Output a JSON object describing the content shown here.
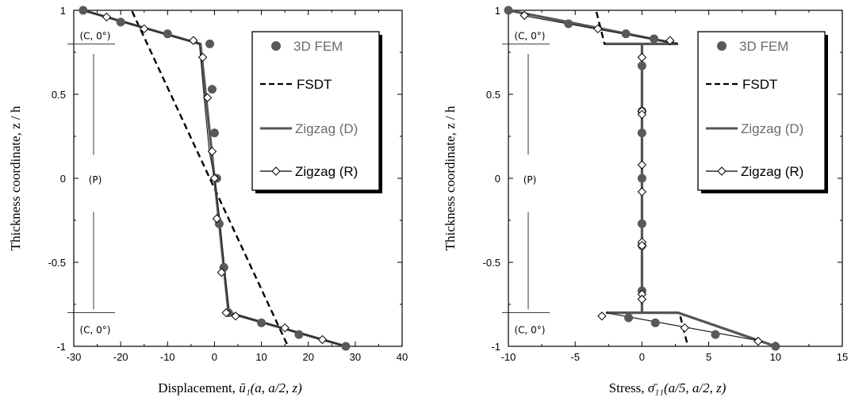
{
  "colors": {
    "fem": "#595959",
    "zigzag_d": "#555555",
    "zigzag_r_line": "#222222",
    "fsdt": "#000000",
    "legend_gray": "#6b6b6b"
  },
  "chart_data": [
    {
      "type": "line",
      "name": "left",
      "xlabel": "Displacement,",
      "xlabel_math": "ū₁(a, a/2, z)",
      "ylabel": "Thickness coordinate, z / h",
      "xlim": [
        -30,
        40
      ],
      "ylim": [
        -1,
        1
      ],
      "xticks": [
        "-30",
        "-20",
        "-10",
        "0",
        "10",
        "20",
        "30",
        "40"
      ],
      "yticks": [
        "1",
        "0.5",
        "0",
        "-0.5",
        "-1"
      ],
      "layers": {
        "top": "(C, 0°)",
        "middle": "(P)",
        "bottom": "(C, 0°)"
      },
      "legend": {
        "fem": "3D FEM",
        "fsdt": "FSDT",
        "zigzag_d": "Zigzag (D)",
        "zigzag_r": "Zigzag (R)"
      },
      "series": [
        {
          "name": "3D FEM",
          "style": "markers-filled",
          "x": [
            -28,
            -20,
            -10,
            -1,
            -0.5,
            0,
            0.5,
            1,
            2,
            3,
            10,
            18,
            28
          ],
          "y": [
            1,
            0.93,
            0.86,
            0.8,
            0.53,
            0.27,
            0,
            -0.27,
            -0.53,
            -0.8,
            -0.86,
            -0.93,
            -1
          ]
        },
        {
          "name": "FSDT",
          "style": "dashed",
          "x": [
            -18.5,
            16.5
          ],
          "y": [
            1.05,
            -1.05
          ]
        },
        {
          "name": "Zigzag (D)",
          "style": "solid",
          "x": [
            -28,
            -3,
            3,
            28
          ],
          "y": [
            1,
            0.8,
            -0.8,
            -1
          ]
        },
        {
          "name": "Zigzag (R)",
          "style": "line-open-diamonds",
          "x": [
            -28,
            -3.2,
            -2.2,
            -1.1,
            0,
            1.1,
            2.2,
            3.2,
            28
          ],
          "y": [
            1,
            0.8,
            0.48,
            0.16,
            0,
            -0.24,
            -0.56,
            -0.8,
            -1
          ],
          "markers_x": [
            -23,
            -15,
            -4.5,
            -2.5,
            -1.5,
            -0.5,
            0,
            0.5,
            1.5,
            2.5,
            4.5,
            15,
            23
          ],
          "markers_y": [
            0.96,
            0.89,
            0.82,
            0.72,
            0.48,
            0.16,
            0,
            -0.24,
            -0.56,
            -0.8,
            -0.82,
            -0.89,
            -0.96
          ]
        }
      ]
    },
    {
      "type": "line",
      "name": "right",
      "xlabel": "Stress,",
      "xlabel_math": "σ̄₁₁(a/5, a/2, z)",
      "ylabel": "Thickness coordinate, z / h",
      "xlim": [
        -10,
        15
      ],
      "ylim": [
        -1,
        1
      ],
      "xticks": [
        "-10",
        "-5",
        "0",
        "5",
        "10",
        "15"
      ],
      "yticks": [
        "1",
        "0.5",
        "0",
        "-0.5",
        "-1"
      ],
      "layers": {
        "top": "(C, 0°)",
        "middle": "(P)",
        "bottom": "(C, 0°)"
      },
      "legend": {
        "fem": "3D FEM",
        "fsdt": "FSDT",
        "zigzag_d": "Zigzag (D)",
        "zigzag_r": "Zigzag (R)"
      },
      "series": [
        {
          "name": "3D FEM",
          "style": "markers-filled",
          "x": [
            -10,
            -5.5,
            -1.2,
            0.9,
            0,
            0,
            0,
            0,
            0,
            0,
            0,
            -1,
            1,
            5.5,
            10
          ],
          "y": [
            1,
            0.92,
            0.86,
            0.83,
            0.67,
            0.4,
            0.27,
            0,
            -0.27,
            -0.4,
            -0.67,
            -0.83,
            -0.86,
            -0.93,
            -1
          ],
          "note": "x-values near 0 plotted on the vertical line"
        },
        {
          "name": "FSDT",
          "style": "dashed",
          "x": [
            -3.6,
            -2.8,
            2.8,
            3.6
          ],
          "y": [
            1.05,
            0.8,
            -0.8,
            -1.05
          ],
          "segments": [
            [
              [
                -3.6,
                1.05
              ],
              [
                -2.8,
                0.8
              ],
              [
                0,
                0.8
              ]
            ],
            [
              [
                0,
                -0.8
              ],
              [
                2.8,
                -0.8
              ],
              [
                3.6,
                -1.05
              ]
            ]
          ]
        },
        {
          "name": "Zigzag (D)",
          "style": "solid",
          "segments": [
            [
              [
                -10,
                1
              ],
              [
                2.7,
                0.8
              ],
              [
                -2.7,
                0.8
              ]
            ],
            [
              [
                0,
                0.8
              ],
              [
                0,
                -0.8
              ]
            ],
            [
              [
                -2.7,
                -0.8
              ],
              [
                2.7,
                -0.8
              ],
              [
                10,
                -1
              ]
            ]
          ]
        },
        {
          "name": "Zigzag (R)",
          "style": "line-open-diamonds",
          "segments": [
            [
              [
                -9,
                0.97
              ],
              [
                2.7,
                0.8
              ]
            ],
            [
              [
                -2.7,
                -0.8
              ],
              [
                9,
                -0.97
              ]
            ]
          ],
          "markers_x": [
            -8.8,
            -3.3,
            2.1,
            0,
            0,
            0,
            0,
            0,
            0,
            0,
            0,
            0,
            -3,
            3.2,
            8.7
          ],
          "markers_y": [
            0.97,
            0.89,
            0.82,
            0.72,
            0.4,
            0.38,
            0.08,
            -0.08,
            -0.38,
            -0.4,
            -0.69,
            -0.72,
            -0.82,
            -0.89,
            -0.97
          ]
        }
      ]
    }
  ]
}
